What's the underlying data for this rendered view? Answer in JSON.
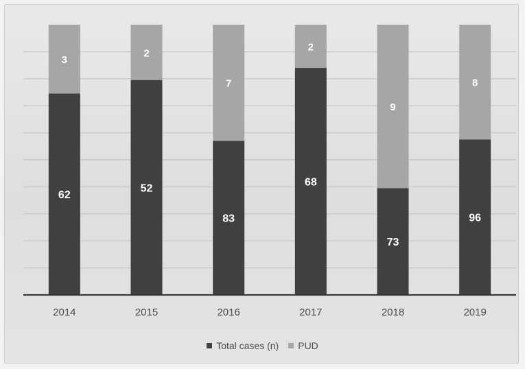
{
  "chart_data": {
    "type": "bar",
    "stacked": "100%",
    "categories": [
      "2014",
      "2015",
      "2016",
      "2017",
      "2018",
      "2019"
    ],
    "series": [
      {
        "name": "Total cases (n)",
        "values": [
          62,
          52,
          83,
          68,
          73,
          96
        ],
        "color": "#404040"
      },
      {
        "name": "PUD",
        "values": [
          3,
          2,
          7,
          2,
          9,
          8
        ],
        "color": "#a6a6a6"
      }
    ],
    "bottom_share": [
      0.745,
      0.795,
      0.57,
      0.84,
      0.395,
      0.575
    ],
    "ylim": [
      0,
      1
    ],
    "grid": true,
    "legend_position": "bottom",
    "data_label_color": "#ffffff"
  },
  "colors": {
    "background": "#e2e2e2",
    "grid": "#c8c8c8",
    "axis": "#3a3a3a"
  }
}
